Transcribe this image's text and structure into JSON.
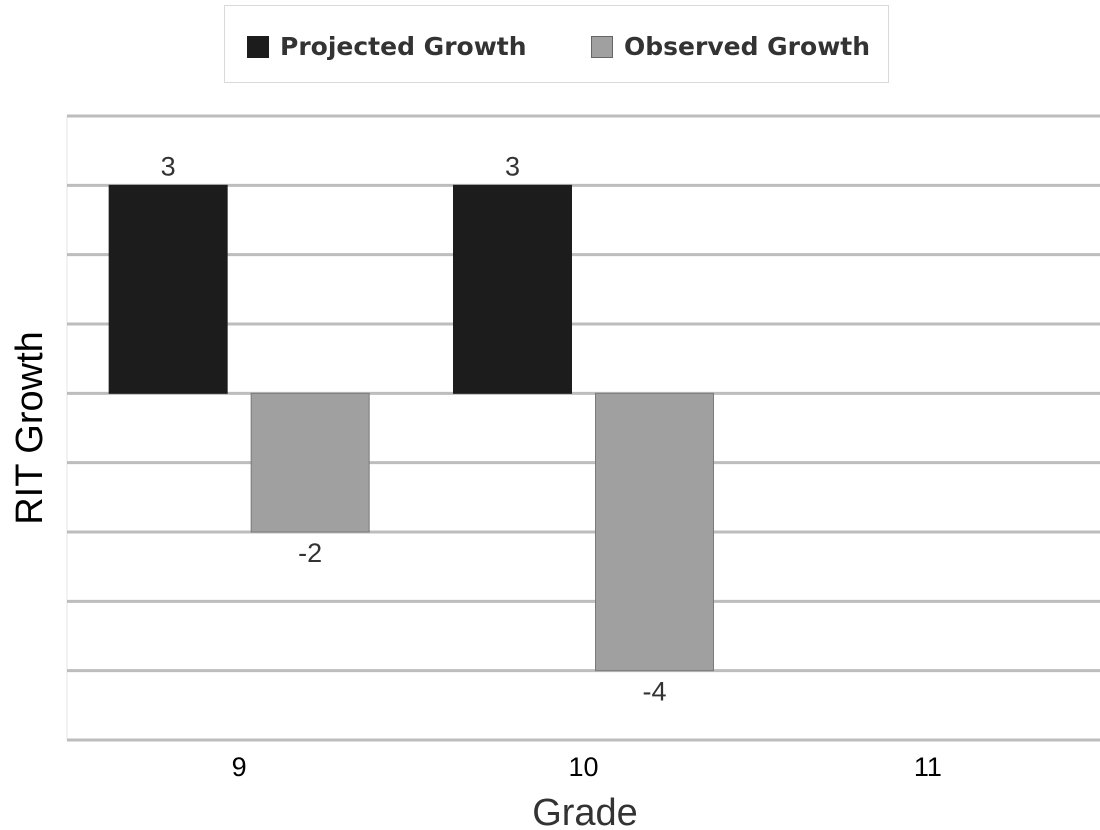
{
  "chart_data": {
    "type": "bar",
    "xlabel": "Grade",
    "ylabel": "RIT Growth",
    "categories": [
      "9",
      "10",
      "11"
    ],
    "series": [
      {
        "name": "Projected Growth",
        "color": "#1c1c1c",
        "values": [
          3,
          3,
          null
        ]
      },
      {
        "name": "Observed Growth",
        "color": "#a0a0a0",
        "values": [
          -2,
          -4,
          null
        ]
      }
    ],
    "data_labels": [
      {
        "series": 0,
        "index": 0,
        "text": "3"
      },
      {
        "series": 0,
        "index": 1,
        "text": "3"
      },
      {
        "series": 1,
        "index": 0,
        "text": "-2"
      },
      {
        "series": 1,
        "index": 1,
        "text": "-4"
      }
    ],
    "ylim": [
      -5,
      4
    ],
    "ygrid_step": 1,
    "grid": true,
    "legend_position": "top-center"
  }
}
